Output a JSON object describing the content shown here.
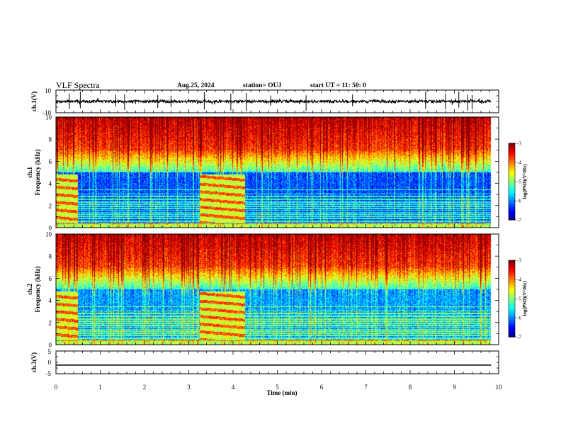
{
  "header": {
    "title": "VLF Spectra",
    "date": "Aug.25, 2024",
    "station": "station= OUJ",
    "start": "start  UT =    11: 50: 0"
  },
  "chart_data": [
    {
      "type": "line",
      "name": "ch1-waveform",
      "ylabel": "ch.1(V)",
      "ylim": [
        -10,
        10
      ],
      "yticks": [
        "10",
        "-10"
      ],
      "xlim": [
        0,
        10
      ],
      "baseline": 0,
      "noise_amplitude": 1.2,
      "spike_times_min": [
        0.3,
        0.55,
        1.35,
        1.55,
        2.3,
        2.6,
        3.35,
        3.95,
        4.3,
        4.85,
        5.65,
        6.7,
        8.35,
        8.8,
        9.1,
        9.3,
        9.4
      ]
    },
    {
      "type": "heatmap",
      "name": "ch1-spectrogram",
      "ylabel": "ch.1\nFrequency (kHz)",
      "xlim": [
        0,
        10
      ],
      "ylim": [
        0,
        10
      ],
      "yticks": [
        "0",
        "2",
        "4",
        "6",
        "8",
        "10"
      ],
      "colorbar": {
        "label": "log(PSD)(V²/Hz)",
        "range": [
          -7,
          -3
        ],
        "ticks": [
          "-3",
          "-4",
          "-5",
          "-6",
          "-7"
        ]
      },
      "data_end_min": 9.83,
      "transmitter_bursts_min": [
        [
          0,
          0.48
        ],
        [
          3.25,
          4.25
        ]
      ]
    },
    {
      "type": "heatmap",
      "name": "ch2-spectrogram",
      "ylabel": "ch.2\nFrequency (kHz)",
      "xlim": [
        0,
        10
      ],
      "ylim": [
        0,
        10
      ],
      "yticks": [
        "0",
        "2",
        "4",
        "6",
        "8",
        "10"
      ],
      "colorbar": {
        "label": "log(PSD)(V²/Hz)",
        "range": [
          -7,
          -3
        ],
        "ticks": [
          "-3",
          "-4",
          "-5",
          "-6",
          "-7"
        ]
      },
      "data_end_min": 9.83,
      "transmitter_bursts_min": [
        [
          0,
          0.48
        ],
        [
          3.25,
          4.25
        ]
      ]
    },
    {
      "type": "line",
      "name": "ch3-waveform",
      "ylabel": "ch.3(V)",
      "ylim": [
        -5,
        5
      ],
      "yticks": [
        "5",
        "0",
        "-5"
      ],
      "xlim": [
        0,
        10
      ],
      "constant_value": -1.2,
      "xlabel": "Time (min)",
      "xticks": [
        "0",
        "1",
        "2",
        "3",
        "4",
        "5",
        "6",
        "7",
        "8",
        "9",
        "10"
      ]
    }
  ]
}
